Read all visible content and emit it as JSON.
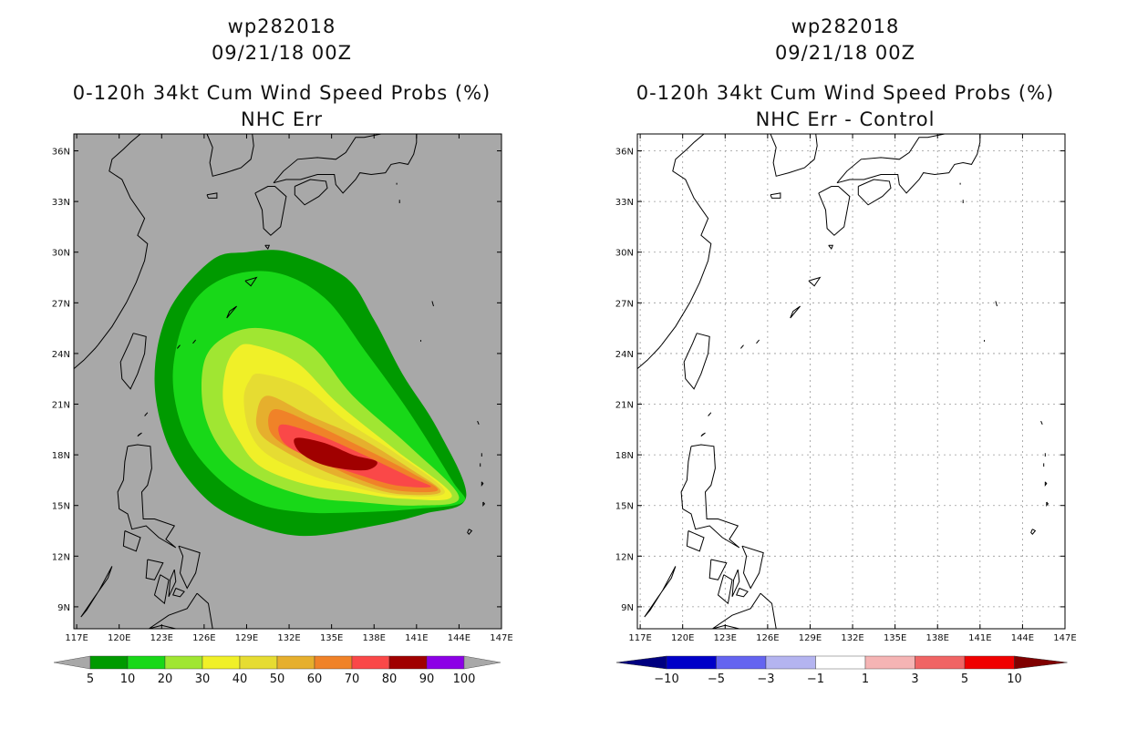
{
  "panels": [
    {
      "id": "left",
      "storm_id": "wp282018",
      "datetime": "09/21/18 00Z",
      "product": "0-120h 34kt Cum Wind Speed Probs (%)",
      "subtitle": "NHC Err",
      "background": "#a8a8a8",
      "colorbar": {
        "levels": [
          "5",
          "10",
          "20",
          "30",
          "40",
          "50",
          "60",
          "70",
          "80",
          "90",
          "100"
        ],
        "colors": [
          "#009a00",
          "#18d818",
          "#a0e632",
          "#f0f028",
          "#e6dc32",
          "#e6af2d",
          "#f08228",
          "#fa4848",
          "#a00000",
          "#8c00e6"
        ],
        "end_color": "#a8a8a8"
      }
    },
    {
      "id": "right",
      "storm_id": "wp282018",
      "datetime": "09/21/18 00Z",
      "product": "0-120h 34kt Cum Wind Speed Probs (%)",
      "subtitle": "NHC Err - Control",
      "background": "#ffffff",
      "colorbar": {
        "levels": [
          "−10",
          "−5",
          "−3",
          "−1",
          "1",
          "3",
          "5",
          "10"
        ],
        "colors": [
          "#0000c8",
          "#6464f0",
          "#b4b4f0",
          "#ffffff",
          "#f5b4b4",
          "#f06464",
          "#f00000"
        ],
        "end_low": "#000080",
        "end_high": "#800000"
      }
    }
  ],
  "axes": {
    "lon_labels": [
      "117E",
      "120E",
      "123E",
      "126E",
      "129E",
      "132E",
      "135E",
      "138E",
      "141E",
      "144E",
      "147E"
    ],
    "lat_labels": [
      "36N",
      "33N",
      "30N",
      "27N",
      "24N",
      "21N",
      "18N",
      "15N",
      "12N",
      "9N"
    ],
    "lon_values": [
      117,
      120,
      123,
      126,
      129,
      132,
      135,
      138,
      141,
      144,
      147
    ],
    "lat_values": [
      36,
      33,
      30,
      27,
      24,
      21,
      18,
      15,
      12,
      9
    ],
    "lon_range": [
      116.8,
      147
    ],
    "lat_range": [
      7.7,
      37
    ]
  },
  "probability_field": {
    "description_levels": [
      5,
      10,
      20,
      30,
      40,
      50,
      60,
      70,
      80
    ],
    "contours": [
      {
        "level": 5,
        "color": "#009a00",
        "pts": [
          [
            132,
            30
          ],
          [
            136,
            28.5
          ],
          [
            138,
            26
          ],
          [
            140,
            22.8
          ],
          [
            142.5,
            19.5
          ],
          [
            144.5,
            15.5
          ],
          [
            141.5,
            14.5
          ],
          [
            138,
            13.8
          ],
          [
            133,
            13.2
          ],
          [
            129,
            14
          ],
          [
            126,
            15.5
          ],
          [
            123.5,
            18.5
          ],
          [
            122.5,
            22.5
          ],
          [
            123.5,
            26.5
          ],
          [
            126.5,
            29.5
          ],
          [
            129,
            30
          ]
        ]
      },
      {
        "level": 10,
        "color": "#18d818",
        "pts": [
          [
            131,
            28.8
          ],
          [
            134.5,
            27.3
          ],
          [
            137.5,
            24
          ],
          [
            140.5,
            20.5
          ],
          [
            143.5,
            16.5
          ],
          [
            144.3,
            15.2
          ],
          [
            141,
            14.8
          ],
          [
            137,
            14.6
          ],
          [
            133,
            14.6
          ],
          [
            129.5,
            15.2
          ],
          [
            126.5,
            17
          ],
          [
            124.5,
            19.5
          ],
          [
            123.8,
            23
          ],
          [
            125,
            26.7
          ],
          [
            127.5,
            28.5
          ]
        ]
      },
      {
        "level": 20,
        "color": "#a0e632",
        "pts": [
          [
            130,
            25.5
          ],
          [
            133.5,
            24.5
          ],
          [
            136.5,
            21.5
          ],
          [
            140.5,
            18.5
          ],
          [
            144,
            15.5
          ],
          [
            141,
            15
          ],
          [
            137,
            15.2
          ],
          [
            133.5,
            15.5
          ],
          [
            130,
            16.5
          ],
          [
            127.5,
            18
          ],
          [
            126,
            20.5
          ],
          [
            126,
            23.5
          ],
          [
            127.5,
            25
          ]
        ]
      },
      {
        "level": 30,
        "color": "#f0f028",
        "pts": [
          [
            129.5,
            24.5
          ],
          [
            132.5,
            23.5
          ],
          [
            135.5,
            21
          ],
          [
            139.5,
            18.3
          ],
          [
            143.5,
            15.6
          ],
          [
            140,
            15.4
          ],
          [
            136.5,
            15.8
          ],
          [
            133,
            16.3
          ],
          [
            130,
            17.3
          ],
          [
            128.5,
            18.8
          ],
          [
            127.4,
            20.8
          ],
          [
            127.5,
            23
          ],
          [
            128.3,
            24.3
          ]
        ]
      },
      {
        "level": 40,
        "color": "#e6dc32",
        "pts": [
          [
            130,
            22.8
          ],
          [
            133,
            22
          ],
          [
            136,
            20
          ],
          [
            139.7,
            18
          ],
          [
            143,
            15.8
          ],
          [
            139.5,
            15.6
          ],
          [
            136,
            16.2
          ],
          [
            133.5,
            16.8
          ],
          [
            130.5,
            18
          ],
          [
            129.2,
            19.4
          ],
          [
            128.8,
            21.3
          ],
          [
            129.2,
            22.4
          ]
        ]
      },
      {
        "level": 50,
        "color": "#e6af2d",
        "pts": [
          [
            130.5,
            21.5
          ],
          [
            133.5,
            20.3
          ],
          [
            137,
            19
          ],
          [
            140.5,
            17.2
          ],
          [
            142.7,
            15.8
          ],
          [
            139.5,
            15.7
          ],
          [
            136.5,
            16.4
          ],
          [
            134,
            17.2
          ],
          [
            131.5,
            18.3
          ],
          [
            130,
            19.2
          ],
          [
            129.7,
            20.3
          ]
        ]
      },
      {
        "level": 60,
        "color": "#f08228",
        "pts": [
          [
            131,
            20.7
          ],
          [
            133.8,
            19.8
          ],
          [
            137,
            18.5
          ],
          [
            140.5,
            17
          ],
          [
            142.5,
            15.9
          ],
          [
            139.5,
            15.9
          ],
          [
            136.8,
            16.6
          ],
          [
            134.2,
            17.6
          ],
          [
            131.8,
            18.5
          ],
          [
            130.6,
            19.5
          ]
        ]
      },
      {
        "level": 70,
        "color": "#fa4848",
        "pts": [
          [
            131.5,
            19.8
          ],
          [
            134,
            19.2
          ],
          [
            137,
            18.1
          ],
          [
            140.5,
            16.7
          ],
          [
            142,
            16.1
          ],
          [
            139.5,
            16.2
          ],
          [
            137,
            16.8
          ],
          [
            134.5,
            17.5
          ],
          [
            132.3,
            18.3
          ],
          [
            131.4,
            19
          ]
        ]
      },
      {
        "level": 80,
        "color": "#a00000",
        "pts": [
          [
            132.5,
            19
          ],
          [
            134.5,
            18.7
          ],
          [
            136.5,
            18
          ],
          [
            138.2,
            17.6
          ],
          [
            137.5,
            17.1
          ],
          [
            135.5,
            17.2
          ],
          [
            133.8,
            17.6
          ],
          [
            132.6,
            18.3
          ]
        ]
      }
    ]
  }
}
